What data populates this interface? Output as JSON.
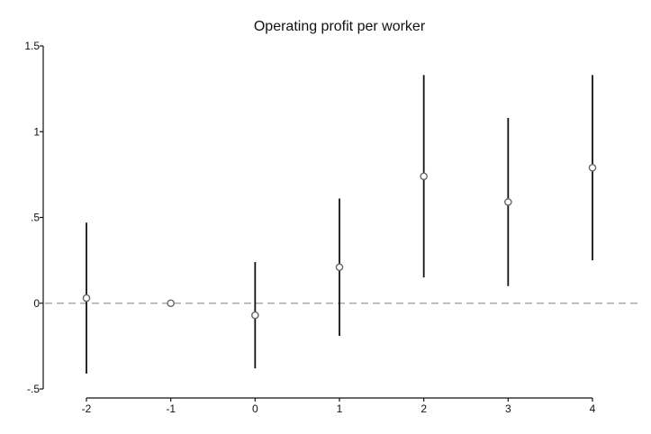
{
  "chart_data": {
    "type": "scatter",
    "title": "Operating profit per worker",
    "xlabel": "",
    "ylabel": "",
    "x": [
      -2,
      -1,
      0,
      1,
      2,
      3,
      4
    ],
    "series": [
      {
        "estimate": [
          0.03,
          0.0,
          -0.07,
          0.21,
          0.74,
          0.59,
          0.79
        ],
        "ci_lower": [
          -0.41,
          0.0,
          -0.38,
          -0.19,
          0.15,
          0.1,
          0.25
        ],
        "ci_upper": [
          0.47,
          0.0,
          0.24,
          0.61,
          1.33,
          1.08,
          1.33
        ]
      }
    ],
    "xticks": [
      "-2",
      "-1",
      "0",
      "1",
      "2",
      "3",
      "4"
    ],
    "yticks": [
      -0.5,
      0,
      0.5,
      1,
      1.5
    ],
    "ytick_labels": [
      "-.5",
      "0",
      ".5",
      "1",
      "1.5"
    ],
    "xlim": [
      -2,
      4
    ],
    "ylim": [
      -0.5,
      1.5
    ],
    "reference_line": {
      "y": 0,
      "style": "dashed"
    },
    "grid": false,
    "colors": {
      "marker": "#666666",
      "ci_line": "#111111",
      "axis": "#111111",
      "reference_line": "#aaaaaa"
    }
  }
}
